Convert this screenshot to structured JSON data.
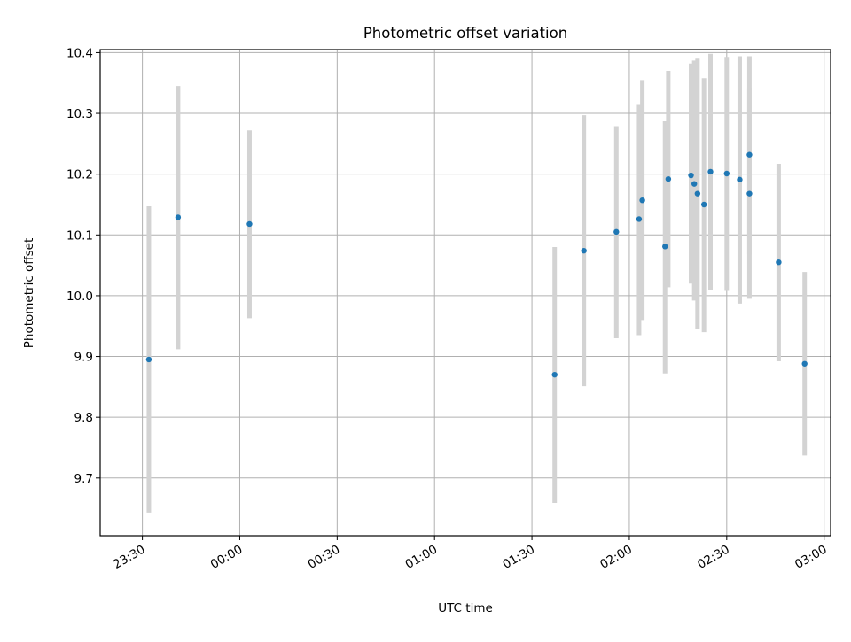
{
  "chart_data": {
    "type": "scatter",
    "title": "Photometric offset variation",
    "xlabel": "UTC time",
    "ylabel": "Photometric offset",
    "x_axis_kind": "time",
    "xlim": [
      "23:17",
      "03:02"
    ],
    "ylim": [
      9.605,
      10.405
    ],
    "x_ticks": [
      "23:30",
      "00:00",
      "00:30",
      "01:00",
      "01:30",
      "02:00",
      "02:30",
      "03:00"
    ],
    "y_ticks": [
      9.7,
      9.8,
      9.9,
      10.0,
      10.1,
      10.2,
      10.3,
      10.4
    ],
    "y_tick_labels": [
      "9.7",
      "9.8",
      "9.9",
      "10.0",
      "10.1",
      "10.2",
      "10.3",
      "10.4"
    ],
    "grid": true,
    "marker_color": "#1f77b4",
    "errorbar_color": "#d3d3d3",
    "points": [
      {
        "t": "23:32",
        "y": 9.895,
        "lo": 9.643,
        "hi": 10.147
      },
      {
        "t": "23:41",
        "y": 10.129,
        "lo": 9.912,
        "hi": 10.345
      },
      {
        "t": "00:03",
        "y": 10.118,
        "lo": 9.963,
        "hi": 10.272
      },
      {
        "t": "01:37",
        "y": 9.87,
        "lo": 9.659,
        "hi": 10.08
      },
      {
        "t": "01:46",
        "y": 10.074,
        "lo": 9.851,
        "hi": 10.297
      },
      {
        "t": "01:56",
        "y": 10.105,
        "lo": 9.93,
        "hi": 10.279
      },
      {
        "t": "02:03",
        "y": 10.126,
        "lo": 9.935,
        "hi": 10.314
      },
      {
        "t": "02:04",
        "y": 10.157,
        "lo": 9.96,
        "hi": 10.355
      },
      {
        "t": "02:11",
        "y": 10.081,
        "lo": 9.872,
        "hi": 10.287
      },
      {
        "t": "02:12",
        "y": 10.192,
        "lo": 10.014,
        "hi": 10.37
      },
      {
        "t": "02:19",
        "y": 10.198,
        "lo": 10.02,
        "hi": 10.382
      },
      {
        "t": "02:20",
        "y": 10.184,
        "lo": 9.992,
        "hi": 10.387
      },
      {
        "t": "02:21",
        "y": 10.168,
        "lo": 9.946,
        "hi": 10.39
      },
      {
        "t": "02:23",
        "y": 10.15,
        "lo": 9.94,
        "hi": 10.358
      },
      {
        "t": "02:25",
        "y": 10.204,
        "lo": 10.01,
        "hi": 10.398
      },
      {
        "t": "02:30",
        "y": 10.201,
        "lo": 10.008,
        "hi": 10.393
      },
      {
        "t": "02:34",
        "y": 10.191,
        "lo": 9.987,
        "hi": 10.394
      },
      {
        "t": "02:37",
        "y": 10.232,
        "lo": 10.068,
        "hi": 10.394
      },
      {
        "t": "02:37",
        "y": 10.168,
        "lo": 9.995,
        "hi": 10.342
      },
      {
        "t": "02:46",
        "y": 10.055,
        "lo": 9.892,
        "hi": 10.217
      },
      {
        "t": "02:54",
        "y": 9.888,
        "lo": 9.737,
        "hi": 10.039
      }
    ]
  }
}
